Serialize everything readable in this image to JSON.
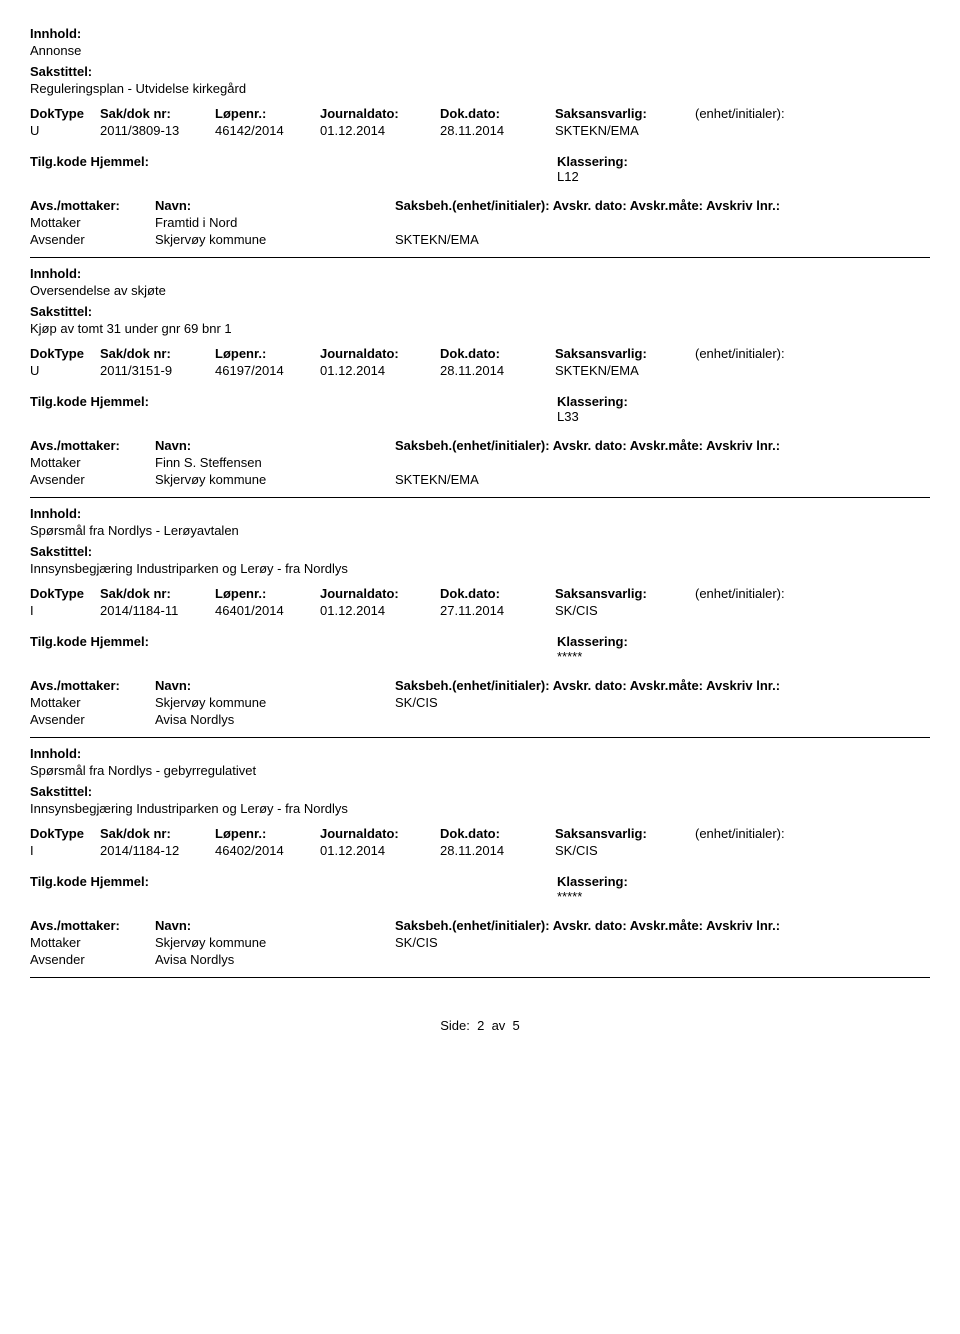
{
  "labels": {
    "innhold": "Innhold:",
    "sakstittel": "Sakstittel:",
    "doktype": "DokType",
    "sakdok": "Sak/dok nr:",
    "lopenr": "Løpenr.:",
    "journaldato": "Journaldato:",
    "dokdato": "Dok.dato:",
    "saksansvarlig": "Saksansvarlig:",
    "enhet": "(enhet/initialer):",
    "tilgkode": "Tilg.kode",
    "hjemmel": "Hjemmel:",
    "klassering": "Klassering:",
    "avsmottaker": "Avs./mottaker:",
    "navn": "Navn:",
    "saksbeh_line": "Saksbeh.(enhet/initialer): Avskr. dato:  Avskr.måte:  Avskriv lnr.:",
    "mottaker": "Mottaker",
    "avsender": "Avsender"
  },
  "records": [
    {
      "innhold": "Annonse",
      "sakstittel": "Reguleringsplan - Utvidelse kirkegård",
      "doktype": "U",
      "sakdok": "2011/3809-13",
      "lopenr": "46142/2014",
      "journaldato": "01.12.2014",
      "dokdato": "28.11.2014",
      "saksansvarlig": "SKTEKN/EMA",
      "klassering": "L12",
      "mottaker_navn": "Framtid i Nord",
      "mottaker_saksbeh": "",
      "avsender_navn": "Skjervøy kommune",
      "avsender_saksbeh": "SKTEKN/EMA"
    },
    {
      "innhold": "Oversendelse av skjøte",
      "sakstittel": "Kjøp av tomt 31 under gnr 69 bnr 1",
      "doktype": "U",
      "sakdok": "2011/3151-9",
      "lopenr": "46197/2014",
      "journaldato": "01.12.2014",
      "dokdato": "28.11.2014",
      "saksansvarlig": "SKTEKN/EMA",
      "klassering": "L33",
      "mottaker_navn": "Finn S. Steffensen",
      "mottaker_saksbeh": "",
      "avsender_navn": "Skjervøy kommune",
      "avsender_saksbeh": "SKTEKN/EMA"
    },
    {
      "innhold": "Spørsmål fra Nordlys - Lerøyavtalen",
      "sakstittel": "Innsynsbegjæring Industriparken og Lerøy - fra Nordlys",
      "doktype": "I",
      "sakdok": "2014/1184-11",
      "lopenr": "46401/2014",
      "journaldato": "01.12.2014",
      "dokdato": "27.11.2014",
      "saksansvarlig": "SK/CIS",
      "klassering": "*****",
      "mottaker_navn": "Skjervøy kommune",
      "mottaker_saksbeh": "SK/CIS",
      "avsender_navn": "Avisa Nordlys",
      "avsender_saksbeh": ""
    },
    {
      "innhold": "Spørsmål fra Nordlys - gebyrregulativet",
      "sakstittel": "Innsynsbegjæring Industriparken og Lerøy - fra Nordlys",
      "doktype": "I",
      "sakdok": "2014/1184-12",
      "lopenr": "46402/2014",
      "journaldato": "01.12.2014",
      "dokdato": "28.11.2014",
      "saksansvarlig": "SK/CIS",
      "klassering": "*****",
      "mottaker_navn": "Skjervøy kommune",
      "mottaker_saksbeh": "SK/CIS",
      "avsender_navn": "Avisa Nordlys",
      "avsender_saksbeh": ""
    }
  ],
  "footer": {
    "side_label": "Side:",
    "page": "2",
    "av": "av",
    "total": "5"
  }
}
